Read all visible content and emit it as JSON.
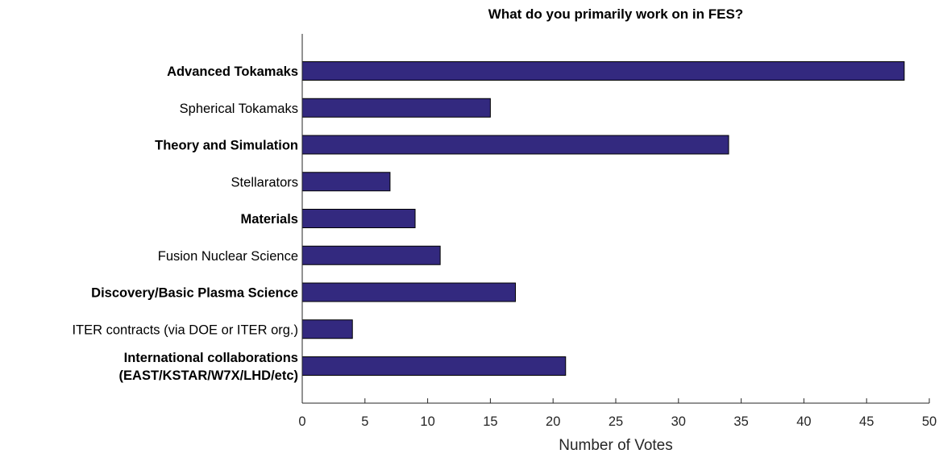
{
  "chart_data": {
    "type": "bar",
    "orientation": "horizontal",
    "title": "What do you primarily work on in FES?",
    "xlabel": "Number of Votes",
    "ylabel": "",
    "xlim": [
      0,
      50
    ],
    "xticks": [
      0,
      5,
      10,
      15,
      20,
      25,
      30,
      35,
      40,
      45,
      50
    ],
    "grid": false,
    "bar_color": "#33297f",
    "categories": [
      {
        "label": "Advanced Tokamaks",
        "lines": [
          "Advanced Tokamaks"
        ],
        "bold": true,
        "value": 48
      },
      {
        "label": "Spherical Tokamaks",
        "lines": [
          "Spherical Tokamaks"
        ],
        "bold": false,
        "value": 15
      },
      {
        "label": "Theory and Simulation",
        "lines": [
          "Theory and Simulation"
        ],
        "bold": true,
        "value": 34
      },
      {
        "label": "Stellarators",
        "lines": [
          "Stellarators"
        ],
        "bold": false,
        "value": 7
      },
      {
        "label": "Materials",
        "lines": [
          "Materials"
        ],
        "bold": true,
        "value": 9
      },
      {
        "label": "Fusion Nuclear Science",
        "lines": [
          "Fusion Nuclear Science"
        ],
        "bold": false,
        "value": 11
      },
      {
        "label": "Discovery/Basic Plasma Science",
        "lines": [
          "Discovery/Basic Plasma Science"
        ],
        "bold": true,
        "value": 17
      },
      {
        "label": "ITER contracts (via DOE or ITER org.)",
        "lines": [
          "ITER contracts (via DOE or ITER org.)"
        ],
        "bold": false,
        "value": 4
      },
      {
        "label": "International collaborations (EAST/KSTAR/W7X/LHD/etc)",
        "lines": [
          "International collaborations",
          "(EAST/KSTAR/W7X/LHD/etc)"
        ],
        "bold": true,
        "value": 21
      }
    ]
  }
}
